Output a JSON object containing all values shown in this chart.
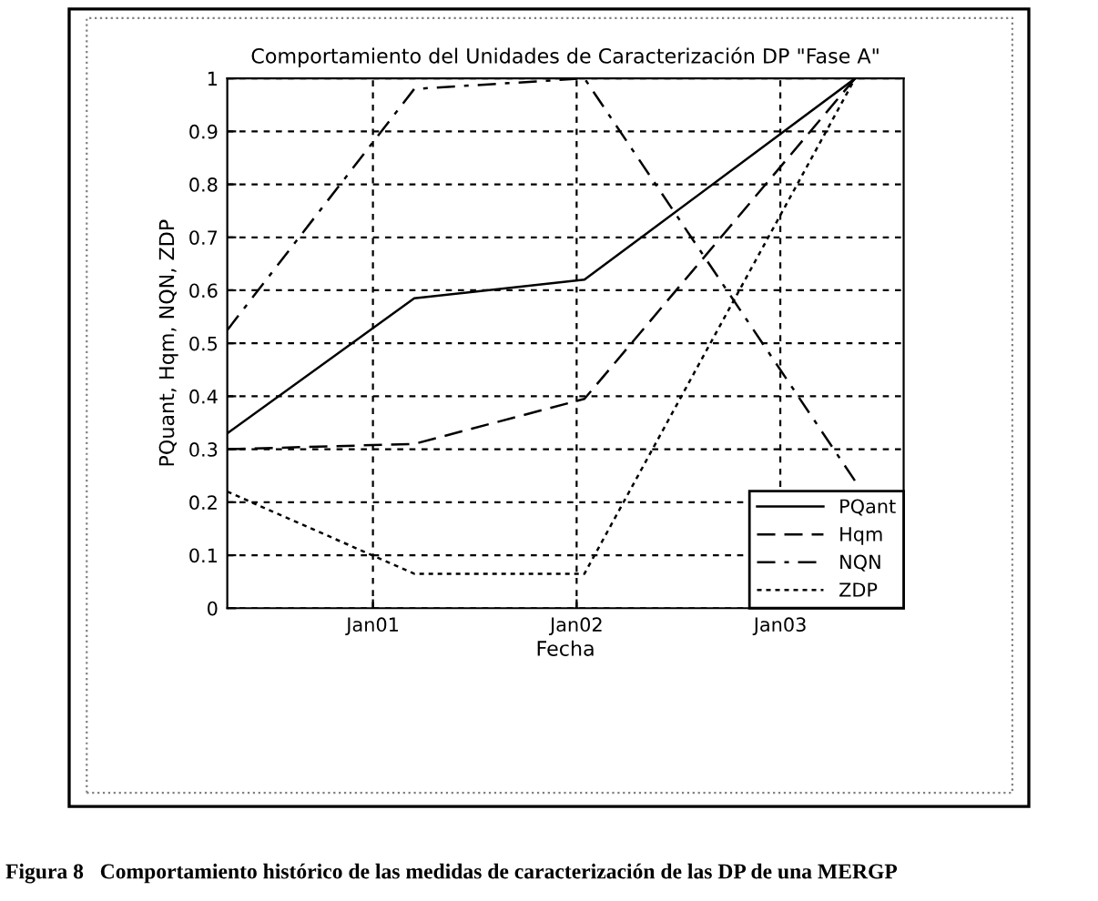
{
  "chart_data": {
    "type": "line",
    "title": "Comportamiento del Unidades de Caracterización DP \"Fase A\"",
    "xlabel": "Fecha",
    "ylabel": "PQuant, Hqm, NQN, ZDP",
    "x": [
      "2000-04-15",
      "2001-03-16",
      "2002-01-15",
      "2003-05-15"
    ],
    "series": [
      {
        "name": "PQant",
        "color": "#000000",
        "line_style": "solid",
        "values": [
          0.33,
          0.585,
          0.62,
          1.0
        ]
      },
      {
        "name": "Hqm",
        "color": "#000000",
        "line_style": "dashed",
        "values": [
          0.3,
          0.31,
          0.395,
          1.0
        ]
      },
      {
        "name": "NQN",
        "color": "#000000",
        "line_style": "dashdot",
        "values": [
          0.525,
          0.98,
          1.0,
          0.24
        ]
      },
      {
        "name": "ZDP",
        "color": "#000000",
        "line_style": "dotted",
        "values": [
          0.22,
          0.065,
          0.065,
          1.0
        ]
      }
    ],
    "xlim": [
      "2000-04-15",
      "2003-08-10"
    ],
    "xticks": [
      {
        "value": "2001-01-01",
        "label": "Jan01"
      },
      {
        "value": "2002-01-01",
        "label": "Jan02"
      },
      {
        "value": "2003-01-01",
        "label": "Jan03"
      }
    ],
    "ylim": [
      0,
      1
    ],
    "yticks": [
      0,
      0.1,
      0.2,
      0.3,
      0.4,
      0.5,
      0.6,
      0.7,
      0.8,
      0.9,
      1
    ],
    "grid": true,
    "legend": "lower right",
    "marker": "none",
    "annotations": [
      "Figura 8   Comportamiento histórico de las medidas de caracterización de las DP de una MERGP"
    ]
  }
}
